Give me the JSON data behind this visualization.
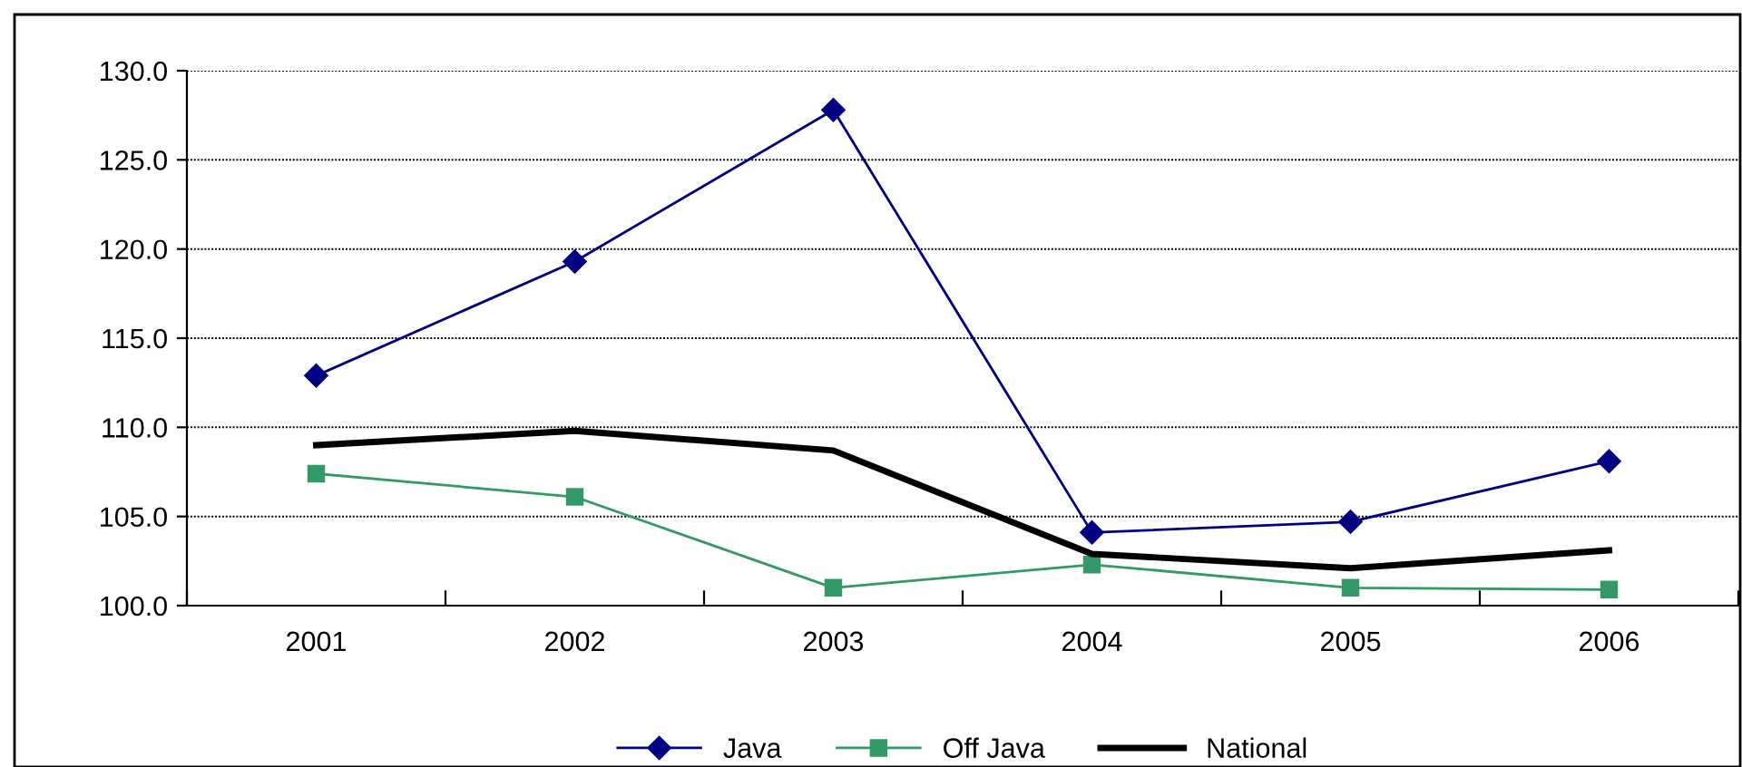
{
  "chart_data": {
    "type": "line",
    "categories": [
      "2001",
      "2002",
      "2003",
      "2004",
      "2005",
      "2006"
    ],
    "series": [
      {
        "name": "Java",
        "color": "#000080",
        "values": [
          112.9,
          119.3,
          127.8,
          104.1,
          104.7,
          108.1
        ],
        "marker": "diamond"
      },
      {
        "name": "Off Java",
        "color": "#339966",
        "values": [
          107.4,
          106.1,
          101.0,
          102.3,
          101.0,
          100.9
        ],
        "marker": "square"
      },
      {
        "name": "National",
        "color": "#000000",
        "values": [
          109.0,
          109.8,
          108.7,
          102.9,
          102.1,
          103.1
        ],
        "marker": "none"
      }
    ],
    "ylim": [
      100,
      130
    ],
    "yticks": [
      {
        "value": 100,
        "label": "100.0"
      },
      {
        "value": 105,
        "label": "105.0"
      },
      {
        "value": 110,
        "label": "110.0"
      },
      {
        "value": 115,
        "label": "115.0"
      },
      {
        "value": 120,
        "label": "120.0"
      },
      {
        "value": 125,
        "label": "125.0"
      },
      {
        "value": 130,
        "label": "130.0"
      }
    ],
    "grid": "y",
    "legend": "bottom"
  }
}
